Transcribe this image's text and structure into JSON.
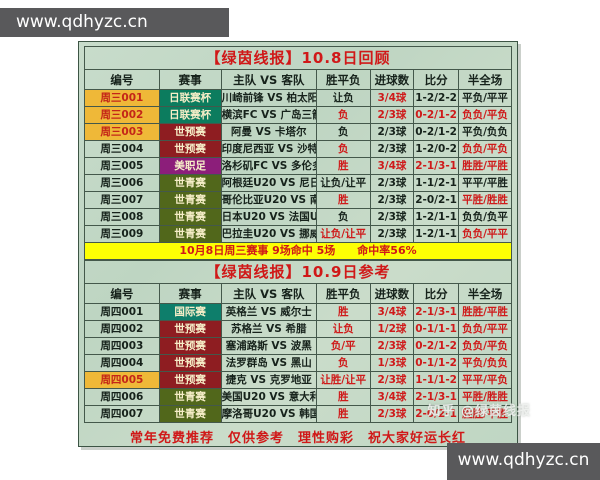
{
  "topbar": {
    "url": "www.qdhyzc.cn"
  },
  "bottombar": {
    "url": "www.qdhyzc.cn"
  },
  "watermark": "知乎 @绿茵线报",
  "footer": "常年免费推荐　仅供参考　理性购彩　祝大家好运长红",
  "league_colors": {
    "日联赛杯": "#0c7c5e",
    "世预赛": "#8e1d21",
    "美职足": "#8c1e7a",
    "世青赛": "#51671b",
    "国际赛": "#0e7e6b"
  },
  "review_table": {
    "title": "【绿茵线报】10.8日回顾",
    "columns": [
      "编号",
      "赛事",
      "主队 VS 客队",
      "胜平负",
      "进球数",
      "比分",
      "半全场"
    ],
    "rows": [
      {
        "id": "周三001",
        "id_hl": true,
        "league": "日联赛杯",
        "match": "川崎前锋 VS 柏太阳神",
        "wdl": "让负",
        "wdl_red": false,
        "goals": "3/4球",
        "goals_red": true,
        "score": "1-2/2-2",
        "score_red": false,
        "hf": "平负/平平",
        "hf_red": false
      },
      {
        "id": "周三002",
        "id_hl": true,
        "league": "日联赛杯",
        "match": "横滨FC VS 广岛三箭",
        "wdl": "负",
        "wdl_red": true,
        "goals": "2/3球",
        "goals_red": true,
        "score": "0-2/1-2",
        "score_red": true,
        "hf": "负负/平负",
        "hf_red": true
      },
      {
        "id": "周三003",
        "id_hl": true,
        "league": "世预赛",
        "match": "阿曼 VS 卡塔尔",
        "wdl": "负",
        "wdl_red": false,
        "goals": "2/3球",
        "goals_red": false,
        "score": "0-2/1-2",
        "score_red": false,
        "hf": "平负/负负",
        "hf_red": false
      },
      {
        "id": "周三004",
        "id_hl": false,
        "league": "世预赛",
        "match": "印度尼西亚 VS 沙特",
        "wdl": "负",
        "wdl_red": true,
        "goals": "2/3球",
        "goals_red": false,
        "score": "1-2/0-2",
        "score_red": false,
        "hf": "负负/平负",
        "hf_red": true
      },
      {
        "id": "周三005",
        "id_hl": false,
        "league": "美职足",
        "match": "洛杉矶FC VS 多伦多FC",
        "wdl": "胜",
        "wdl_red": true,
        "goals": "3/4球",
        "goals_red": true,
        "score": "2-1/3-1",
        "score_red": true,
        "hf": "胜胜/平胜",
        "hf_red": true
      },
      {
        "id": "周三006",
        "id_hl": false,
        "league": "世青赛",
        "match": "阿根廷U20 VS 尼日利亚U20",
        "wdl": "让负/让平",
        "wdl_red": false,
        "goals": "2/3球",
        "goals_red": false,
        "score": "1-1/2-1",
        "score_red": false,
        "hf": "平平/平胜",
        "hf_red": false
      },
      {
        "id": "周三007",
        "id_hl": false,
        "league": "世青赛",
        "match": "哥伦比亚U20 VS 南非U20",
        "wdl": "胜",
        "wdl_red": true,
        "goals": "2/3球",
        "goals_red": false,
        "score": "2-0/2-1",
        "score_red": false,
        "hf": "平胜/胜胜",
        "hf_red": true
      },
      {
        "id": "周三008",
        "id_hl": false,
        "league": "世青赛",
        "match": "日本U20 VS 法国U20",
        "wdl": "负",
        "wdl_red": false,
        "goals": "2/3球",
        "goals_red": false,
        "score": "1-2/1-1",
        "score_red": false,
        "hf": "负负/负平",
        "hf_red": false
      },
      {
        "id": "周三009",
        "id_hl": false,
        "league": "世青赛",
        "match": "巴拉圭U20 VS 挪威U20",
        "wdl": "让负/让平",
        "wdl_red": true,
        "goals": "2/3球",
        "goals_red": false,
        "score": "1-2/1-1",
        "score_red": false,
        "hf": "负负/平平",
        "hf_red": true
      }
    ],
    "summary": "10月8日周三赛事 9场命中 5场　　命中率56%"
  },
  "forecast_table": {
    "title": "【绿茵线报】10.9日参考",
    "columns": [
      "编号",
      "赛事",
      "主队 VS 客队",
      "胜平负",
      "进球数",
      "比分",
      "半全场"
    ],
    "rows": [
      {
        "id": "周四001",
        "id_hl": false,
        "league": "国际赛",
        "match": "英格兰 VS 威尔士",
        "wdl": "胜",
        "wdl_red": true,
        "goals": "3/4球",
        "goals_red": true,
        "score": "2-1/3-1",
        "score_red": true,
        "hf": "胜胜/平胜",
        "hf_red": true
      },
      {
        "id": "周四002",
        "id_hl": false,
        "league": "世预赛",
        "match": "苏格兰 VS 希腊",
        "wdl": "让负",
        "wdl_red": true,
        "goals": "1/2球",
        "goals_red": true,
        "score": "0-1/1-1",
        "score_red": true,
        "hf": "负负/平平",
        "hf_red": true
      },
      {
        "id": "周四003",
        "id_hl": false,
        "league": "世预赛",
        "match": "塞浦路斯 VS 波黑",
        "wdl": "负/平",
        "wdl_red": true,
        "goals": "2/3球",
        "goals_red": true,
        "score": "0-2/1-2",
        "score_red": true,
        "hf": "负负/平负",
        "hf_red": true
      },
      {
        "id": "周四004",
        "id_hl": false,
        "league": "世预赛",
        "match": "法罗群岛 VS 黑山",
        "wdl": "负",
        "wdl_red": true,
        "goals": "1/3球",
        "goals_red": true,
        "score": "0-1/1-2",
        "score_red": true,
        "hf": "平负/负负",
        "hf_red": true
      },
      {
        "id": "周四005",
        "id_hl": true,
        "league": "世预赛",
        "match": "捷克 VS 克罗地亚",
        "wdl": "让胜/让平",
        "wdl_red": true,
        "goals": "2/3球",
        "goals_red": true,
        "score": "1-1/1-2",
        "score_red": true,
        "hf": "平平/平负",
        "hf_red": true
      },
      {
        "id": "周四006",
        "id_hl": false,
        "league": "世青赛",
        "match": "美国U20 VS 意大利U20",
        "wdl": "胜",
        "wdl_red": true,
        "goals": "3/4球",
        "goals_red": true,
        "score": "2-1/3-1",
        "score_red": true,
        "hf": "平胜/胜胜",
        "hf_red": true
      },
      {
        "id": "周四007",
        "id_hl": false,
        "league": "世青赛",
        "match": "摩洛哥U20 VS 韩国U20",
        "wdl": "胜",
        "wdl_red": true,
        "goals": "2/3球",
        "goals_red": true,
        "score": "2-0/2-1",
        "score_red": true,
        "hf": "胜胜/平胜",
        "hf_red": true
      }
    ]
  }
}
